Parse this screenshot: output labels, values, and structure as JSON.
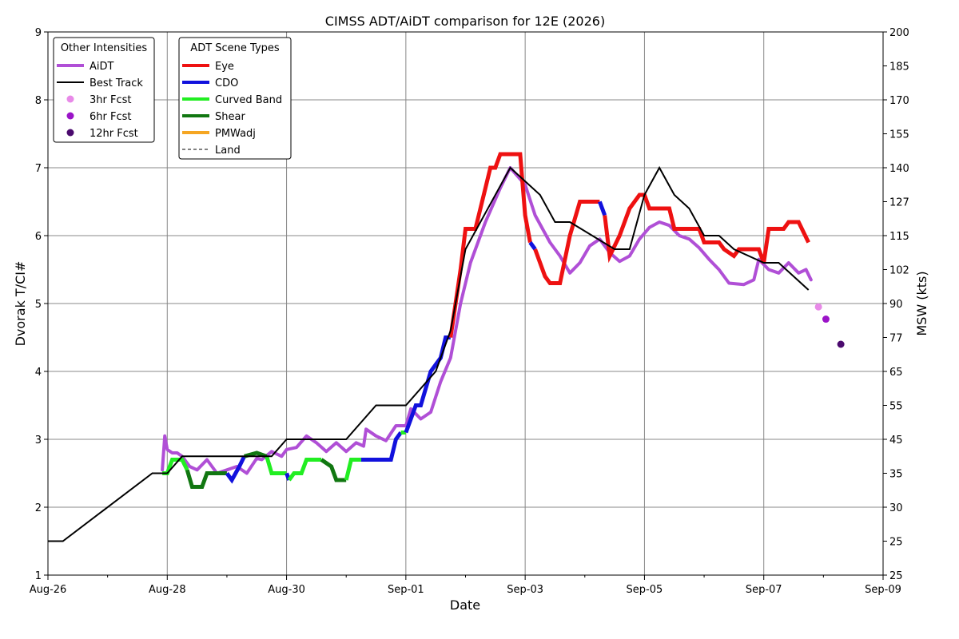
{
  "chart_data": {
    "type": "line",
    "title": "CIMSS ADT/AiDT comparison for 12E (2026)",
    "xlabel": "Date",
    "ylabel": "Dvorak T/CI#",
    "y2label": "MSW (kts)",
    "xlim": [
      "2026-08-26",
      "2026-09-09"
    ],
    "ylim": [
      1,
      9
    ],
    "x_ticks": [
      {
        "date": "2026-08-26",
        "label": "Aug-26"
      },
      {
        "date": "2026-08-28",
        "label": "Aug-28"
      },
      {
        "date": "2026-08-30",
        "label": "Aug-30"
      },
      {
        "date": "2026-09-01",
        "label": "Sep-01"
      },
      {
        "date": "2026-09-03",
        "label": "Sep-03"
      },
      {
        "date": "2026-09-05",
        "label": "Sep-05"
      },
      {
        "date": "2026-09-07",
        "label": "Sep-07"
      },
      {
        "date": "2026-09-09",
        "label": "Sep-09"
      }
    ],
    "y_ticks": [
      1,
      2,
      3,
      4,
      5,
      6,
      7,
      8,
      9
    ],
    "y2_ticks": [
      {
        "t": 1.0,
        "label": "25"
      },
      {
        "t": 1.5,
        "label": "25"
      },
      {
        "t": 2.0,
        "label": "30"
      },
      {
        "t": 2.5,
        "label": "35"
      },
      {
        "t": 3.0,
        "label": "45"
      },
      {
        "t": 3.5,
        "label": "55"
      },
      {
        "t": 4.0,
        "label": "65"
      },
      {
        "t": 4.5,
        "label": "77"
      },
      {
        "t": 5.0,
        "label": "90"
      },
      {
        "t": 5.5,
        "label": "102"
      },
      {
        "t": 6.0,
        "label": "115"
      },
      {
        "t": 6.5,
        "label": "127"
      },
      {
        "t": 7.0,
        "label": "140"
      },
      {
        "t": 7.5,
        "label": "155"
      },
      {
        "t": 8.0,
        "label": "170"
      },
      {
        "t": 8.5,
        "label": "185"
      },
      {
        "t": 9.0,
        "label": "200"
      }
    ],
    "grid": true,
    "legend_other": {
      "title": "Other Intensities",
      "entries": [
        {
          "label": "AiDT",
          "color": "#b04fd6",
          "kind": "line"
        },
        {
          "label": "Best Track",
          "color": "#000000",
          "kind": "line"
        },
        {
          "label": "3hr Fcst",
          "color": "#e88ae8",
          "kind": "dot"
        },
        {
          "label": "6hr Fcst",
          "color": "#9b14c8",
          "kind": "dot"
        },
        {
          "label": "12hr Fcst",
          "color": "#4b0a6e",
          "kind": "dot"
        }
      ]
    },
    "legend_scene": {
      "title": "ADT Scene Types",
      "entries": [
        {
          "label": "Eye",
          "color": "#ee1111",
          "kind": "line"
        },
        {
          "label": "CDO",
          "color": "#1111dd",
          "kind": "line"
        },
        {
          "label": "Curved Band",
          "color": "#22ee22",
          "kind": "line"
        },
        {
          "label": "Shear",
          "color": "#117711",
          "kind": "line"
        },
        {
          "label": "PMWadj",
          "color": "#f5a623",
          "kind": "line"
        },
        {
          "label": "Land",
          "color": "#000000",
          "kind": "dashed"
        }
      ]
    },
    "best_track": {
      "name": "Best Track",
      "color": "#000000",
      "points": [
        [
          "2026-08-26T00:00",
          1.5
        ],
        [
          "2026-08-26T06:00",
          1.5
        ],
        [
          "2026-08-27T18:00",
          2.5
        ],
        [
          "2026-08-28T00:00",
          2.5
        ],
        [
          "2026-08-28T06:00",
          2.75
        ],
        [
          "2026-08-29T18:00",
          2.75
        ],
        [
          "2026-08-30T00:00",
          3.0
        ],
        [
          "2026-08-31T00:00",
          3.0
        ],
        [
          "2026-08-31T12:00",
          3.5
        ],
        [
          "2026-09-01T00:00",
          3.5
        ],
        [
          "2026-09-01T12:00",
          4.0
        ],
        [
          "2026-09-01T18:00",
          4.6
        ],
        [
          "2026-09-02T00:00",
          5.8
        ],
        [
          "2026-09-02T18:00",
          7.0
        ],
        [
          "2026-09-03T06:00",
          6.6
        ],
        [
          "2026-09-03T12:00",
          6.2
        ],
        [
          "2026-09-03T18:00",
          6.2
        ],
        [
          "2026-09-04T12:00",
          5.8
        ],
        [
          "2026-09-04T18:00",
          5.8
        ],
        [
          "2026-09-05T00:00",
          6.6
        ],
        [
          "2026-09-05T06:00",
          7.0
        ],
        [
          "2026-09-05T12:00",
          6.6
        ],
        [
          "2026-09-05T18:00",
          6.4
        ],
        [
          "2026-09-06T00:00",
          6.0
        ],
        [
          "2026-09-06T06:00",
          6.0
        ],
        [
          "2026-09-06T12:00",
          5.8
        ],
        [
          "2026-09-07T00:00",
          5.6
        ],
        [
          "2026-09-07T06:00",
          5.6
        ],
        [
          "2026-09-07T18:00",
          5.2
        ]
      ]
    },
    "aidt": {
      "name": "AiDT",
      "color": "#b04fd6",
      "points": [
        [
          "2026-08-27T22:00",
          2.55
        ],
        [
          "2026-08-27T23:00",
          3.05
        ],
        [
          "2026-08-28T00:00",
          2.85
        ],
        [
          "2026-08-28T02:00",
          2.8
        ],
        [
          "2026-08-28T04:00",
          2.8
        ],
        [
          "2026-08-28T06:00",
          2.75
        ],
        [
          "2026-08-28T09:00",
          2.6
        ],
        [
          "2026-08-28T12:00",
          2.55
        ],
        [
          "2026-08-28T16:00",
          2.7
        ],
        [
          "2026-08-28T20:00",
          2.5
        ],
        [
          "2026-08-29T00:00",
          2.55
        ],
        [
          "2026-08-29T04:00",
          2.6
        ],
        [
          "2026-08-29T08:00",
          2.5
        ],
        [
          "2026-08-29T12:00",
          2.72
        ],
        [
          "2026-08-29T14:00",
          2.7
        ],
        [
          "2026-08-29T18:00",
          2.82
        ],
        [
          "2026-08-29T22:00",
          2.75
        ],
        [
          "2026-08-30T00:00",
          2.85
        ],
        [
          "2026-08-30T04:00",
          2.88
        ],
        [
          "2026-08-30T08:00",
          3.05
        ],
        [
          "2026-08-30T12:00",
          2.95
        ],
        [
          "2026-08-30T16:00",
          2.82
        ],
        [
          "2026-08-30T20:00",
          2.95
        ],
        [
          "2026-08-31T00:00",
          2.82
        ],
        [
          "2026-08-31T04:00",
          2.95
        ],
        [
          "2026-08-31T07:00",
          2.9
        ],
        [
          "2026-08-31T08:00",
          3.15
        ],
        [
          "2026-08-31T12:00",
          3.05
        ],
        [
          "2026-08-31T16:00",
          2.98
        ],
        [
          "2026-08-31T20:00",
          3.2
        ],
        [
          "2026-09-01T00:00",
          3.2
        ],
        [
          "2026-09-01T02:00",
          3.45
        ],
        [
          "2026-09-01T06:00",
          3.3
        ],
        [
          "2026-09-01T10:00",
          3.4
        ],
        [
          "2026-09-01T14:00",
          3.85
        ],
        [
          "2026-09-01T18:00",
          4.2
        ],
        [
          "2026-09-01T22:00",
          5.0
        ],
        [
          "2026-09-02T02:00",
          5.6
        ],
        [
          "2026-09-02T08:00",
          6.2
        ],
        [
          "2026-09-02T14:00",
          6.7
        ],
        [
          "2026-09-02T18:00",
          7.0
        ],
        [
          "2026-09-03T00:00",
          6.75
        ],
        [
          "2026-09-03T04:00",
          6.3
        ],
        [
          "2026-09-03T10:00",
          5.9
        ],
        [
          "2026-09-03T14:00",
          5.7
        ],
        [
          "2026-09-03T18:00",
          5.45
        ],
        [
          "2026-09-03T22:00",
          5.6
        ],
        [
          "2026-09-04T02:00",
          5.85
        ],
        [
          "2026-09-04T06:00",
          5.95
        ],
        [
          "2026-09-04T10:00",
          5.75
        ],
        [
          "2026-09-04T14:00",
          5.62
        ],
        [
          "2026-09-04T18:00",
          5.7
        ],
        [
          "2026-09-04T22:00",
          5.95
        ],
        [
          "2026-09-05T02:00",
          6.12
        ],
        [
          "2026-09-05T06:00",
          6.2
        ],
        [
          "2026-09-05T10:00",
          6.15
        ],
        [
          "2026-09-05T14:00",
          6.0
        ],
        [
          "2026-09-05T18:00",
          5.95
        ],
        [
          "2026-09-05T22:00",
          5.82
        ],
        [
          "2026-09-06T02:00",
          5.65
        ],
        [
          "2026-09-06T06:00",
          5.5
        ],
        [
          "2026-09-06T10:00",
          5.3
        ],
        [
          "2026-09-06T16:00",
          5.28
        ],
        [
          "2026-09-06T20:00",
          5.35
        ],
        [
          "2026-09-06T22:00",
          5.65
        ],
        [
          "2026-09-07T02:00",
          5.5
        ],
        [
          "2026-09-07T06:00",
          5.45
        ],
        [
          "2026-09-07T10:00",
          5.6
        ],
        [
          "2026-09-07T14:00",
          5.45
        ],
        [
          "2026-09-07T17:00",
          5.5
        ],
        [
          "2026-09-07T19:00",
          5.35
        ]
      ]
    },
    "adt_segments": [
      {
        "scene": "Curved Band",
        "points": [
          [
            "2026-08-27T22:00",
            2.5
          ],
          [
            "2026-08-28T00:00",
            2.5
          ],
          [
            "2026-08-28T02:00",
            2.7
          ],
          [
            "2026-08-28T06:00",
            2.7
          ],
          [
            "2026-08-28T08:00",
            2.55
          ]
        ]
      },
      {
        "scene": "Shear",
        "points": [
          [
            "2026-08-28T08:00",
            2.55
          ],
          [
            "2026-08-28T10:00",
            2.3
          ],
          [
            "2026-08-28T14:00",
            2.3
          ],
          [
            "2026-08-28T16:00",
            2.5
          ],
          [
            "2026-08-29T00:00",
            2.5
          ]
        ]
      },
      {
        "scene": "CDO",
        "points": [
          [
            "2026-08-29T00:00",
            2.5
          ],
          [
            "2026-08-29T02:00",
            2.4
          ],
          [
            "2026-08-29T05:00",
            2.6
          ],
          [
            "2026-08-29T07:00",
            2.75
          ]
        ]
      },
      {
        "scene": "Shear",
        "points": [
          [
            "2026-08-29T07:00",
            2.75
          ],
          [
            "2026-08-29T12:00",
            2.8
          ],
          [
            "2026-08-29T16:00",
            2.75
          ]
        ]
      },
      {
        "scene": "Curved Band",
        "points": [
          [
            "2026-08-29T16:00",
            2.75
          ],
          [
            "2026-08-29T18:00",
            2.5
          ],
          [
            "2026-08-30T00:00",
            2.5
          ]
        ]
      },
      {
        "scene": "CDO",
        "points": [
          [
            "2026-08-30T00:00",
            2.5
          ],
          [
            "2026-08-30T01:00",
            2.4
          ]
        ]
      },
      {
        "scene": "Curved Band",
        "points": [
          [
            "2026-08-30T01:00",
            2.4
          ],
          [
            "2026-08-30T03:00",
            2.5
          ],
          [
            "2026-08-30T06:00",
            2.5
          ],
          [
            "2026-08-30T08:00",
            2.7
          ],
          [
            "2026-08-30T14:00",
            2.7
          ]
        ]
      },
      {
        "scene": "Shear",
        "points": [
          [
            "2026-08-30T14:00",
            2.7
          ],
          [
            "2026-08-30T18:00",
            2.6
          ],
          [
            "2026-08-30T20:00",
            2.4
          ],
          [
            "2026-08-31T00:00",
            2.4
          ]
        ]
      },
      {
        "scene": "Curved Band",
        "points": [
          [
            "2026-08-31T00:00",
            2.4
          ],
          [
            "2026-08-31T02:00",
            2.7
          ],
          [
            "2026-08-31T06:00",
            2.7
          ]
        ]
      },
      {
        "scene": "CDO",
        "points": [
          [
            "2026-08-31T06:00",
            2.7
          ],
          [
            "2026-08-31T18:00",
            2.7
          ],
          [
            "2026-08-31T20:00",
            3.0
          ],
          [
            "2026-08-31T22:00",
            3.1
          ]
        ]
      },
      {
        "scene": "Curved Band",
        "points": [
          [
            "2026-08-31T22:00",
            3.1
          ],
          [
            "2026-09-01T00:00",
            3.1
          ]
        ]
      },
      {
        "scene": "CDO",
        "points": [
          [
            "2026-09-01T00:00",
            3.1
          ],
          [
            "2026-09-01T02:00",
            3.3
          ],
          [
            "2026-09-01T04:00",
            3.5
          ],
          [
            "2026-09-01T06:00",
            3.5
          ],
          [
            "2026-09-01T10:00",
            4.0
          ],
          [
            "2026-09-01T14:00",
            4.2
          ],
          [
            "2026-09-01T16:00",
            4.5
          ],
          [
            "2026-09-01T18:00",
            4.5
          ]
        ]
      },
      {
        "scene": "Eye",
        "points": [
          [
            "2026-09-01T18:00",
            4.5
          ],
          [
            "2026-09-01T22:00",
            5.5
          ],
          [
            "2026-09-02T00:00",
            6.1
          ],
          [
            "2026-09-02T04:00",
            6.1
          ],
          [
            "2026-09-02T08:00",
            6.7
          ],
          [
            "2026-09-02T10:00",
            7.0
          ],
          [
            "2026-09-02T12:00",
            7.0
          ],
          [
            "2026-09-02T14:00",
            7.2
          ],
          [
            "2026-09-02T22:00",
            7.2
          ],
          [
            "2026-09-03T00:00",
            6.3
          ],
          [
            "2026-09-03T02:00",
            5.9
          ]
        ]
      },
      {
        "scene": "CDO",
        "points": [
          [
            "2026-09-03T02:00",
            5.9
          ],
          [
            "2026-09-03T04:00",
            5.8
          ]
        ]
      },
      {
        "scene": "Eye",
        "points": [
          [
            "2026-09-03T04:00",
            5.8
          ],
          [
            "2026-09-03T08:00",
            5.4
          ],
          [
            "2026-09-03T10:00",
            5.3
          ],
          [
            "2026-09-03T14:00",
            5.3
          ],
          [
            "2026-09-03T18:00",
            6.0
          ],
          [
            "2026-09-03T22:00",
            6.5
          ],
          [
            "2026-09-04T06:00",
            6.5
          ]
        ]
      },
      {
        "scene": "CDO",
        "points": [
          [
            "2026-09-04T06:00",
            6.5
          ],
          [
            "2026-09-04T08:00",
            6.3
          ]
        ]
      },
      {
        "scene": "Eye",
        "points": [
          [
            "2026-09-04T08:00",
            6.3
          ],
          [
            "2026-09-04T10:00",
            5.7
          ],
          [
            "2026-09-04T14:00",
            6.0
          ],
          [
            "2026-09-04T18:00",
            6.4
          ],
          [
            "2026-09-04T22:00",
            6.6
          ],
          [
            "2026-09-05T00:00",
            6.6
          ],
          [
            "2026-09-05T02:00",
            6.4
          ],
          [
            "2026-09-05T10:00",
            6.4
          ],
          [
            "2026-09-05T12:00",
            6.1
          ],
          [
            "2026-09-05T22:00",
            6.1
          ],
          [
            "2026-09-06T00:00",
            5.9
          ],
          [
            "2026-09-06T06:00",
            5.9
          ],
          [
            "2026-09-06T08:00",
            5.8
          ],
          [
            "2026-09-06T12:00",
            5.7
          ],
          [
            "2026-09-06T14:00",
            5.8
          ],
          [
            "2026-09-06T22:00",
            5.8
          ],
          [
            "2026-09-07T00:00",
            5.6
          ],
          [
            "2026-09-07T02:00",
            6.1
          ],
          [
            "2026-09-07T08:00",
            6.1
          ],
          [
            "2026-09-07T10:00",
            6.2
          ],
          [
            "2026-09-07T14:00",
            6.2
          ],
          [
            "2026-09-07T18:00",
            5.9
          ]
        ]
      }
    ],
    "forecasts": [
      {
        "label": "3hr Fcst",
        "x": "2026-09-07T22:00",
        "y": 4.95,
        "color": "#e88ae8"
      },
      {
        "label": "6hr Fcst",
        "x": "2026-09-08T01:00",
        "y": 4.77,
        "color": "#9b14c8"
      },
      {
        "label": "12hr Fcst",
        "x": "2026-09-08T07:00",
        "y": 4.4,
        "color": "#4b0a6e"
      }
    ]
  }
}
